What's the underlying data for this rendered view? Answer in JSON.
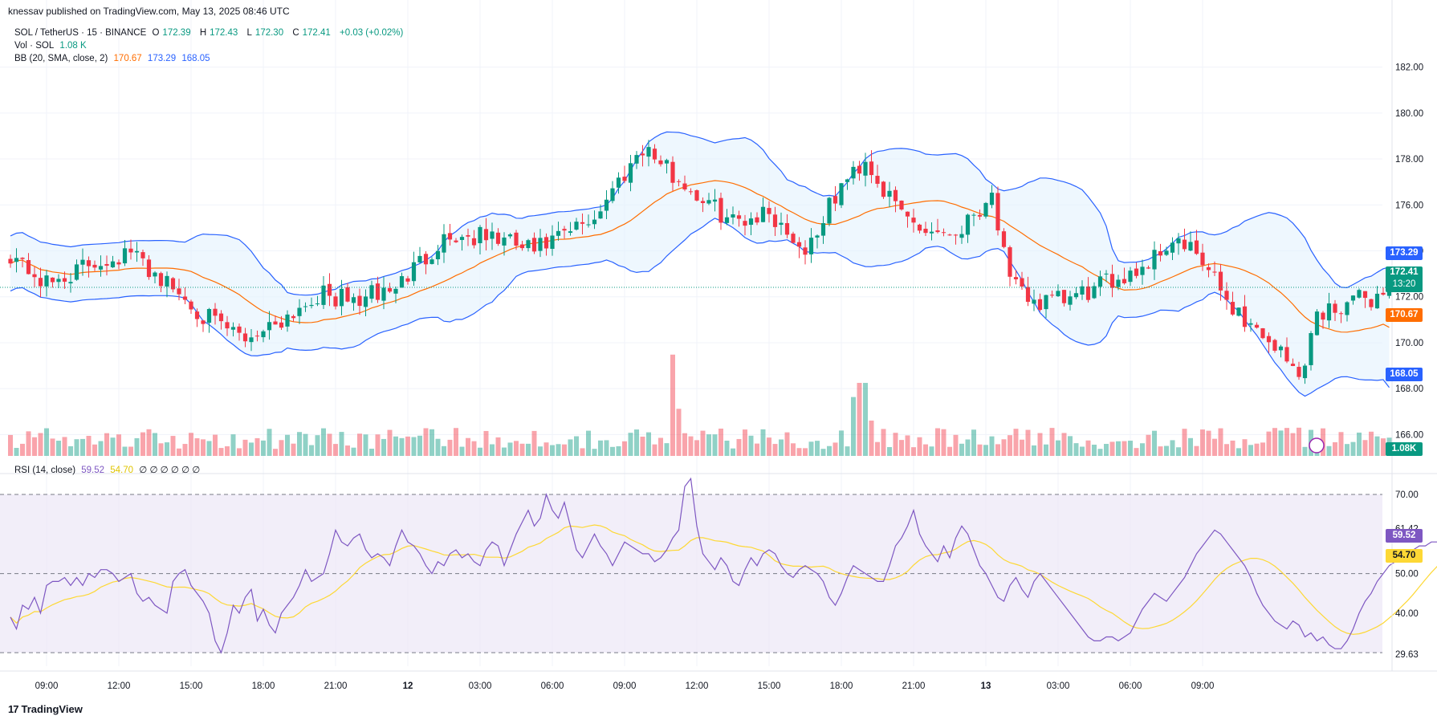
{
  "header": {
    "published": "knessav published on TradingView.com, May 13, 2025 08:46 UTC"
  },
  "legend": {
    "symbol": "SOL / TetherUS · 15 · BINANCE",
    "open_label": "O",
    "open": "172.39",
    "high_label": "H",
    "high": "172.43",
    "low_label": "L",
    "low": "172.30",
    "close_label": "C",
    "close": "172.41",
    "change": "+0.03 (+0.02%)",
    "vol_label": "Vol · SOL",
    "vol_value": "1.08 K",
    "bb_label": "BB (20, SMA, close, 2)",
    "bb_basis": "170.67",
    "bb_upper": "173.29",
    "bb_lower": "168.05",
    "rsi_label": "RSI (14, close)",
    "rsi_value": "59.52",
    "rsi_ma": "54.70",
    "rsi_empty": "∅ ∅ ∅ ∅ ∅ ∅"
  },
  "price_tags": {
    "upper": "173.29",
    "last": "172.41",
    "countdown": "13:20",
    "basis": "170.67",
    "lower": "168.05",
    "volume": "1.08K"
  },
  "rsi_tags": {
    "rsi": "59.52",
    "ma": "54.70"
  },
  "footer": {
    "logo_mark": "17",
    "logo_text": "TradingView"
  },
  "colors": {
    "up": "#089981",
    "down": "#f23645",
    "bb_band": "#2962ff",
    "bb_basis": "#ff6d00",
    "bb_fill": "#e3f2fd",
    "rsi": "#7e57c2",
    "rsi_ma": "#fdd835",
    "rsi_fill": "#ede7f6"
  },
  "chart_data": [
    {
      "type": "candlestick",
      "title": "SOL / TetherUS · 15 · BINANCE",
      "x_tick_labels": [
        "09:00",
        "12:00",
        "15:00",
        "18:00",
        "21:00",
        "12",
        "03:00",
        "06:00",
        "09:00",
        "12:00",
        "15:00",
        "18:00",
        "21:00",
        "13",
        "03:00",
        "06:00",
        "09:00"
      ],
      "y_tick_labels": [
        "166.00",
        "168.00",
        "170.00",
        "172.00",
        "174.00",
        "176.00",
        "178.00",
        "180.00",
        "182.00"
      ],
      "ylim": [
        165.0,
        183.0
      ],
      "bar_interval_minutes": 15,
      "grid": true,
      "price_anchors": [
        [
          0,
          173.9
        ],
        [
          6,
          172.5
        ],
        [
          14,
          173.5
        ],
        [
          20,
          173.9
        ],
        [
          25,
          172.8
        ],
        [
          34,
          170.8
        ],
        [
          39,
          170.2
        ],
        [
          46,
          171.2
        ],
        [
          51,
          172.1
        ],
        [
          57,
          171.8
        ],
        [
          64,
          172.4
        ],
        [
          72,
          174.6
        ],
        [
          80,
          174.6
        ],
        [
          87,
          174.0
        ],
        [
          93,
          174.8
        ],
        [
          97,
          175.5
        ],
        [
          105,
          178.6
        ],
        [
          110,
          177.3
        ],
        [
          115,
          176.2
        ],
        [
          120,
          175.3
        ],
        [
          126,
          175.7
        ],
        [
          132,
          174.0
        ],
        [
          138,
          176.8
        ],
        [
          142,
          178.0
        ],
        [
          146,
          176.2
        ],
        [
          151,
          175.0
        ],
        [
          157,
          174.8
        ],
        [
          163,
          176.5
        ],
        [
          166,
          172.5
        ],
        [
          171,
          171.7
        ],
        [
          176,
          171.9
        ],
        [
          180,
          172.3
        ],
        [
          185,
          173.0
        ],
        [
          188,
          173.3
        ],
        [
          193,
          174.5
        ],
        [
          197,
          173.8
        ],
        [
          202,
          171.9
        ],
        [
          205,
          171.0
        ],
        [
          210,
          169.9
        ],
        [
          214,
          168.5
        ],
        [
          217,
          171.2
        ],
        [
          222,
          171.8
        ],
        [
          227,
          172.0
        ],
        [
          229,
          172.4
        ]
      ],
      "volume": {
        "label": "Vol · SOL",
        "last": "1.08K",
        "spikes": [
          [
            110,
            4300
          ],
          [
            111,
            2000
          ],
          [
            140,
            2500
          ],
          [
            141,
            3100
          ],
          [
            142,
            3100
          ],
          [
            143,
            1500
          ]
        ]
      },
      "bollinger": {
        "label": "BB (20, SMA, close, 2)",
        "basis_last": 170.67,
        "upper_last": 173.29,
        "lower_last": 168.05
      },
      "last_price": 172.41
    },
    {
      "type": "line",
      "title": "RSI (14, close)",
      "series": [
        {
          "name": "RSI",
          "values": [
            39,
            36,
            42,
            41,
            44,
            40,
            47,
            48,
            48,
            49,
            47,
            49,
            47,
            50,
            49,
            51,
            51,
            50,
            48,
            49,
            50,
            45,
            43,
            44,
            42,
            41,
            40,
            48,
            50,
            51,
            47,
            45,
            43,
            40,
            33,
            30,
            35,
            42,
            40,
            44,
            46,
            38,
            41,
            37,
            35,
            40,
            42,
            44,
            47,
            51,
            48,
            49,
            50,
            55,
            61,
            58,
            57,
            59,
            60,
            56,
            54,
            55,
            54,
            52,
            57,
            61,
            58,
            57,
            55,
            52,
            50,
            53,
            52,
            55,
            56,
            54,
            55,
            53,
            52,
            56,
            58,
            57,
            52,
            56,
            60,
            63,
            66,
            62,
            64,
            70,
            66,
            64,
            68,
            62,
            56,
            54,
            57,
            60,
            57,
            55,
            52,
            55,
            58,
            57,
            56,
            55,
            55,
            53,
            54,
            56,
            59,
            61,
            72,
            74,
            62,
            55,
            53,
            51,
            54,
            52,
            48,
            47,
            51,
            54,
            52,
            55,
            56,
            55,
            52,
            50,
            49,
            51,
            52,
            51,
            50,
            48,
            44,
            42,
            45,
            49,
            52,
            51,
            50,
            49,
            48,
            48,
            52,
            57,
            59,
            62,
            66,
            60,
            57,
            55,
            53,
            57,
            54,
            59,
            62,
            60,
            56,
            52,
            50,
            47,
            44,
            43,
            47,
            49,
            46,
            44,
            48,
            50,
            48,
            46,
            44,
            42,
            40,
            38,
            36,
            34,
            33,
            33,
            34,
            34,
            33,
            34,
            35,
            38,
            41,
            43,
            45,
            44,
            43,
            45,
            47,
            49,
            52,
            55,
            57,
            59,
            61,
            60,
            58,
            56,
            54,
            52,
            49,
            45,
            42,
            40,
            38,
            37,
            36,
            38,
            37,
            34,
            35,
            33,
            34,
            32,
            31,
            31,
            33,
            36,
            40,
            43,
            45,
            48,
            50,
            52,
            53,
            54,
            55,
            56,
            57,
            57,
            58,
            58,
            60,
            59.5
          ]
        },
        {
          "name": "MA",
          "last": 54.7
        }
      ],
      "y_tick_labels": [
        "29.63",
        "40.00",
        "50.00",
        "61.42",
        "70.00"
      ],
      "ylim": [
        29.63,
        70.0
      ],
      "bands": [
        30,
        50,
        70
      ],
      "empty_values": "∅ ∅ ∅ ∅ ∅ ∅"
    }
  ]
}
